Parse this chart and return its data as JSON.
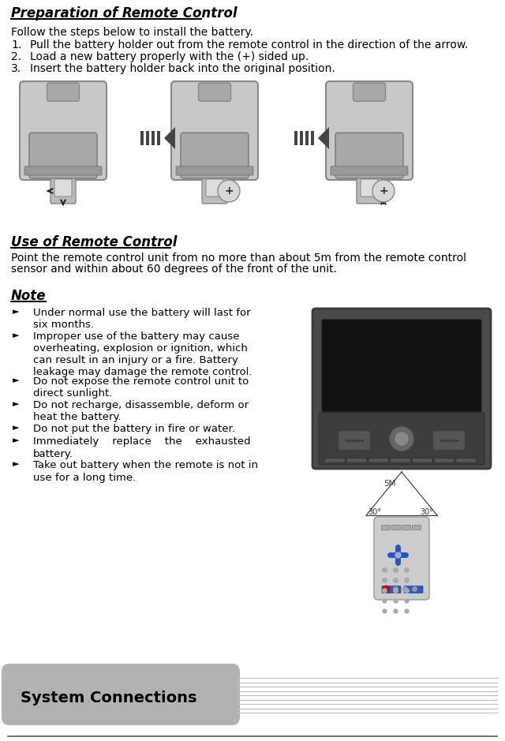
{
  "bg_color": "#ffffff",
  "text_color": "#000000",
  "section1_title": "Preparation of Remote Control",
  "intro_text": "Follow the steps below to install the battery.",
  "steps": [
    "Pull the battery holder out from the remote control in the direction of the arrow.",
    "Load a new battery properly with the (+) sided up.",
    "Insert the battery holder back into the original position."
  ],
  "section2_title": "Use of Remote Control",
  "section2_text_line1": "Point the remote control unit from no more than about 5m from the remote control",
  "section2_text_line2": "sensor and within about 60 degrees of the front of the unit.",
  "note_title": "Note",
  "note_bullets": [
    "Under normal use the battery will last for\nsix months.",
    "Improper use of the battery may cause\noverheating, explosion or ignition, which\ncan result in an injury or a fire. Battery\nleakage may damage the remote control.",
    "Do not expose the remote control unit to\ndirect sunlight.",
    "Do not recharge, disassemble, deform or\nheat the battery.",
    "Do not put the battery in fire or water.",
    "Immediately    replace    the    exhausted\nbattery.",
    "Take out battery when the remote is not in\nuse for a long time."
  ],
  "footer_text": "System Connections",
  "footer_bg": "#b2b2b2",
  "gray_light": "#c8c8c8",
  "gray_dark": "#888888",
  "gray_mid": "#a8a8a8"
}
